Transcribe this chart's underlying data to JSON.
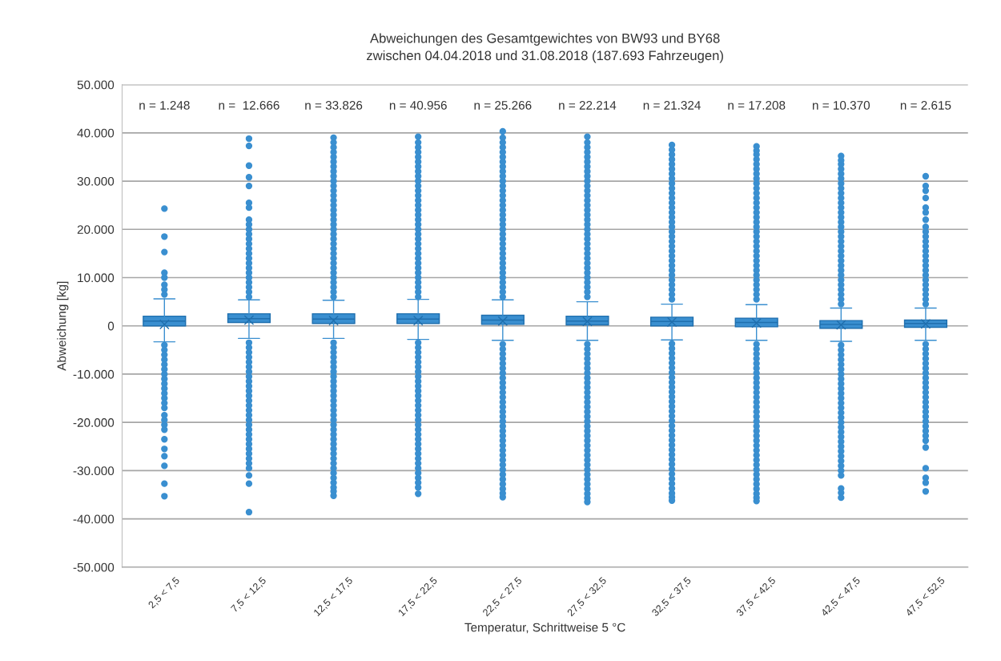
{
  "chart_data": {
    "type": "box",
    "title": "Abweichungen des Gesamtgewichtes von BW93 und BY68\nzwischen 04.04.2018 und 31.08.2018 (187.693 Fahrzeugen)",
    "xlabel": "Temperatur, Schrittweise 5 °C",
    "ylabel": "Abweichung [kg]",
    "categories": [
      "2,5 < 7,5",
      "7,5 < 12,5",
      "12,5 < 17,5",
      "17,5 < 22,5",
      "22,5 < 27,5",
      "27,5 < 32,5",
      "32,5 < 37,5",
      "37,5 < 42,5",
      "42,5 < 47,5",
      "47,5 < 52,5"
    ],
    "annotations": [
      "n = 1.248",
      "n =  12.666",
      "n = 33.826",
      "n = 40.956",
      "n = 25.266",
      "n = 22.214",
      "n = 21.324",
      "n = 17.208",
      "n = 10.370",
      "n = 2.615"
    ],
    "color": "#3a8fd0",
    "ylim": [
      -50000,
      50000
    ],
    "yticks": [
      {
        "value": -50000,
        "label": "-50.000"
      },
      {
        "value": -40000,
        "label": "-40.000"
      },
      {
        "value": -30000,
        "label": "-30.000"
      },
      {
        "value": -20000,
        "label": "-20.000"
      },
      {
        "value": -10000,
        "label": "-10.000"
      },
      {
        "value": 0,
        "label": "0"
      },
      {
        "value": 10000,
        "label": "10.000"
      },
      {
        "value": 20000,
        "label": "20.000"
      },
      {
        "value": 30000,
        "label": "30.000"
      },
      {
        "value": 40000,
        "label": "40.000"
      },
      {
        "value": 50000,
        "label": "50.000"
      }
    ],
    "grid": "y",
    "marker": "circle",
    "boxes": [
      {
        "low": -3300,
        "q1": 0,
        "median": 1000,
        "q3": 2000,
        "high": 5600,
        "mean": 300,
        "outliers": [
          6500,
          7500,
          8500,
          10000,
          11000,
          15300,
          18500,
          24300,
          -4000,
          -5000,
          -6000,
          -7000,
          -8000,
          -9000,
          -10000,
          -11000,
          -12000,
          -13000,
          -14000,
          -15000,
          -16000,
          -17000,
          -18500,
          -19500,
          -20500,
          -21500,
          -23500,
          -25500,
          -27000,
          -29000,
          -32700,
          -35300
        ]
      },
      {
        "low": -2600,
        "q1": 700,
        "median": 1500,
        "q3": 2500,
        "high": 5400,
        "mean": 1200,
        "outliers": [
          6000,
          7000,
          8000,
          9000,
          10000,
          11000,
          12000,
          13000,
          14000,
          15000,
          16000,
          17000,
          18000,
          19000,
          20000,
          21000,
          22000,
          24500,
          25500,
          29000,
          30800,
          33200,
          37300,
          38800,
          -3500,
          -4500,
          -5500,
          -6500,
          -7500,
          -8500,
          -9500,
          -10500,
          -11500,
          -12500,
          -13500,
          -14500,
          -15500,
          -16500,
          -17500,
          -18500,
          -19500,
          -20500,
          -21500,
          -22500,
          -23500,
          -24500,
          -25500,
          -26500,
          -27500,
          -28500,
          -29500,
          -31000,
          -32700,
          -38600
        ]
      },
      {
        "low": -2600,
        "q1": 500,
        "median": 1400,
        "q3": 2500,
        "high": 5300,
        "mean": 1100,
        "outliers": [
          6000,
          7000,
          8000,
          9000,
          10000,
          11000,
          12000,
          13000,
          14000,
          15000,
          16000,
          17000,
          18000,
          19000,
          20000,
          21000,
          22000,
          23000,
          24000,
          25000,
          26000,
          27000,
          28000,
          29000,
          30000,
          31000,
          32000,
          33000,
          34000,
          35000,
          36000,
          37000,
          38000,
          39000,
          -3500,
          -4500,
          -5500,
          -6500,
          -7500,
          -8500,
          -9500,
          -10500,
          -11500,
          -12500,
          -13500,
          -14500,
          -15500,
          -16500,
          -17500,
          -18500,
          -19500,
          -20500,
          -21500,
          -22500,
          -23500,
          -24500,
          -25500,
          -26500,
          -27500,
          -28500,
          -29500,
          -30500,
          -31500,
          -32500,
          -33500,
          -34300,
          -35200
        ]
      },
      {
        "low": -2800,
        "q1": 500,
        "median": 1400,
        "q3": 2500,
        "high": 5500,
        "mean": 1100,
        "outliers": [
          6000,
          7000,
          8000,
          9000,
          10000,
          11000,
          12000,
          13000,
          14000,
          15000,
          16000,
          17000,
          18000,
          19000,
          20000,
          21000,
          22000,
          23000,
          24000,
          25000,
          26000,
          27000,
          28000,
          29000,
          30000,
          31000,
          32000,
          33000,
          34000,
          35000,
          36000,
          37000,
          38000,
          39200,
          -3500,
          -4500,
          -5500,
          -6500,
          -7500,
          -8500,
          -9500,
          -10500,
          -11500,
          -12500,
          -13500,
          -14500,
          -15500,
          -16500,
          -17500,
          -18500,
          -19500,
          -20500,
          -21500,
          -22500,
          -23500,
          -24500,
          -25500,
          -26500,
          -27500,
          -28500,
          -29500,
          -30500,
          -31500,
          -32500,
          -33500,
          -34800
        ]
      },
      {
        "low": -3000,
        "q1": 300,
        "median": 1200,
        "q3": 2200,
        "high": 5400,
        "mean": 1000,
        "outliers": [
          6000,
          7000,
          8000,
          9000,
          10000,
          11000,
          12000,
          13000,
          14000,
          15000,
          16000,
          17000,
          18000,
          19000,
          20000,
          21000,
          22000,
          23000,
          24000,
          25000,
          26000,
          27000,
          28000,
          29000,
          30000,
          31000,
          32000,
          33000,
          34000,
          35000,
          36000,
          37000,
          38000,
          39000,
          40300,
          -3800,
          -4800,
          -5800,
          -6800,
          -7800,
          -8800,
          -9800,
          -10800,
          -11800,
          -12800,
          -13800,
          -14800,
          -15800,
          -16800,
          -17800,
          -18800,
          -19800,
          -20800,
          -21800,
          -22800,
          -23800,
          -24800,
          -25800,
          -26800,
          -27800,
          -28800,
          -29800,
          -30800,
          -31800,
          -32800,
          -33800,
          -34700,
          -35500
        ]
      },
      {
        "low": -3000,
        "q1": 200,
        "median": 1000,
        "q3": 2000,
        "high": 5000,
        "mean": 900,
        "outliers": [
          6000,
          7000,
          8000,
          9000,
          10000,
          11000,
          12000,
          13000,
          14000,
          15000,
          16000,
          17000,
          18000,
          19000,
          20000,
          21000,
          22000,
          23000,
          24000,
          25000,
          26000,
          27000,
          28000,
          29000,
          30000,
          31000,
          32000,
          33000,
          34000,
          35000,
          36000,
          37000,
          38000,
          39200,
          -3800,
          -4800,
          -5800,
          -6800,
          -7800,
          -8800,
          -9800,
          -10800,
          -11800,
          -12800,
          -13800,
          -14800,
          -15800,
          -16800,
          -17800,
          -18800,
          -19800,
          -20800,
          -21800,
          -22800,
          -23800,
          -24800,
          -25800,
          -26800,
          -27800,
          -28800,
          -29800,
          -30800,
          -31800,
          -32800,
          -33800,
          -34800,
          -35700,
          -36500
        ]
      },
      {
        "low": -2900,
        "q1": 0,
        "median": 900,
        "q3": 1800,
        "high": 4500,
        "mean": 800,
        "outliers": [
          5500,
          6500,
          7500,
          8500,
          9500,
          10500,
          11500,
          12500,
          13500,
          14500,
          15500,
          16500,
          17500,
          18500,
          19500,
          20500,
          21500,
          22500,
          23500,
          24500,
          25500,
          26500,
          27500,
          28500,
          29500,
          30500,
          31500,
          32500,
          33500,
          34500,
          35500,
          36500,
          37500,
          -3700,
          -4700,
          -5700,
          -6700,
          -7700,
          -8700,
          -9700,
          -10700,
          -11700,
          -12700,
          -13700,
          -14700,
          -15700,
          -16700,
          -17700,
          -18700,
          -19700,
          -20700,
          -21700,
          -22700,
          -23700,
          -24700,
          -25700,
          -26700,
          -27700,
          -28700,
          -29700,
          -30700,
          -31700,
          -32700,
          -33700,
          -34700,
          -35500,
          -36200
        ]
      },
      {
        "low": -3000,
        "q1": -200,
        "median": 700,
        "q3": 1600,
        "high": 4400,
        "mean": 600,
        "outliers": [
          5500,
          6500,
          7500,
          8500,
          9500,
          10500,
          11500,
          12500,
          13500,
          14500,
          15500,
          16500,
          17500,
          18500,
          19500,
          20500,
          21500,
          22500,
          23500,
          24500,
          25500,
          26500,
          27500,
          28500,
          29500,
          30500,
          31500,
          32500,
          33500,
          34500,
          35500,
          36300,
          37200,
          -3800,
          -4800,
          -5800,
          -6800,
          -7800,
          -8800,
          -9800,
          -10800,
          -11800,
          -12800,
          -13800,
          -14800,
          -15800,
          -16800,
          -17800,
          -18800,
          -19800,
          -20800,
          -21800,
          -22800,
          -23800,
          -24800,
          -25800,
          -26800,
          -27800,
          -28800,
          -29800,
          -30800,
          -31800,
          -32800,
          -33800,
          -34800,
          -35600,
          -36300
        ]
      },
      {
        "low": -3200,
        "q1": -500,
        "median": 300,
        "q3": 1100,
        "high": 3700,
        "mean": 200,
        "outliers": [
          4500,
          5500,
          6500,
          7500,
          8500,
          9500,
          10500,
          11500,
          12500,
          13500,
          14500,
          15500,
          16500,
          17500,
          18500,
          19500,
          20500,
          21500,
          22500,
          23500,
          24500,
          25500,
          26500,
          27500,
          28500,
          29500,
          30500,
          31500,
          32500,
          33500,
          34300,
          35200,
          -4000,
          -5000,
          -6000,
          -7000,
          -8000,
          -9000,
          -10000,
          -11000,
          -12000,
          -13000,
          -14000,
          -15000,
          -16000,
          -17000,
          -18000,
          -19000,
          -20000,
          -21000,
          -22000,
          -23000,
          -24000,
          -25000,
          -26000,
          -27000,
          -28000,
          -29000,
          -30000,
          -31000,
          -33700,
          -34600,
          -35600
        ]
      },
      {
        "low": -3000,
        "q1": -300,
        "median": 500,
        "q3": 1200,
        "high": 3700,
        "mean": 400,
        "outliers": [
          4500,
          5500,
          6500,
          7500,
          8500,
          9500,
          10500,
          11500,
          12500,
          13500,
          14500,
          15500,
          16500,
          17500,
          18500,
          19500,
          20500,
          22000,
          23500,
          24500,
          26500,
          28000,
          29000,
          31000,
          -3800,
          -4800,
          -5800,
          -6800,
          -7800,
          -8800,
          -9800,
          -10800,
          -11800,
          -12800,
          -13800,
          -14800,
          -15800,
          -16800,
          -17800,
          -18800,
          -19800,
          -20800,
          -21800,
          -22800,
          -23800,
          -25200,
          -29500,
          -31500,
          -32500,
          -34300
        ]
      }
    ]
  }
}
